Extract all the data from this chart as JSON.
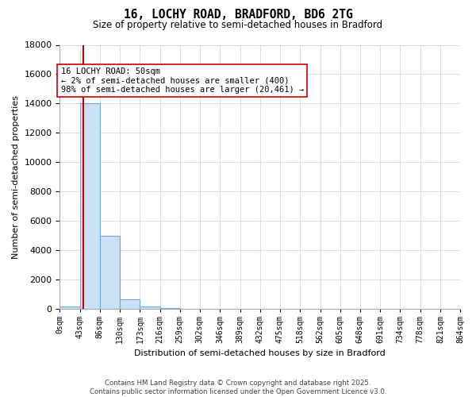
{
  "title_line1": "16, LOCHY ROAD, BRADFORD, BD6 2TG",
  "title_line2": "Size of property relative to semi-detached houses in Bradford",
  "xlabel": "Distribution of semi-detached houses by size in Bradford",
  "ylabel": "Number of semi-detached properties",
  "bar_color": "#cce0f5",
  "bar_edge_color": "#6aaad6",
  "property_line_color": "#cc0000",
  "property_size": 50,
  "annotation_text": "16 LOCHY ROAD: 50sqm\n← 2% of semi-detached houses are smaller (400)\n98% of semi-detached houses are larger (20,461) →",
  "annotation_box_color": "#ffffff",
  "annotation_box_edge": "#cc0000",
  "ylim_max": 18000,
  "yticks": [
    0,
    2000,
    4000,
    6000,
    8000,
    10000,
    12000,
    14000,
    16000,
    18000
  ],
  "bin_edges": [
    0,
    43,
    86,
    130,
    173,
    216,
    259,
    302,
    346,
    389,
    432,
    475,
    518,
    562,
    605,
    648,
    691,
    734,
    778,
    821,
    864
  ],
  "bin_labels": [
    "0sqm",
    "43sqm",
    "86sqm",
    "130sqm",
    "173sqm",
    "216sqm",
    "259sqm",
    "302sqm",
    "346sqm",
    "389sqm",
    "432sqm",
    "475sqm",
    "518sqm",
    "562sqm",
    "605sqm",
    "648sqm",
    "691sqm",
    "734sqm",
    "778sqm",
    "821sqm",
    "864sqm"
  ],
  "bar_heights": [
    200,
    14000,
    5000,
    700,
    200,
    100,
    0,
    0,
    0,
    0,
    0,
    0,
    0,
    0,
    0,
    0,
    0,
    0,
    0,
    0
  ],
  "footer_text": "Contains HM Land Registry data © Crown copyright and database right 2025.\nContains public sector information licensed under the Open Government Licence v3.0.",
  "bg_color": "#ffffff",
  "grid_color": "#d0d8e8"
}
